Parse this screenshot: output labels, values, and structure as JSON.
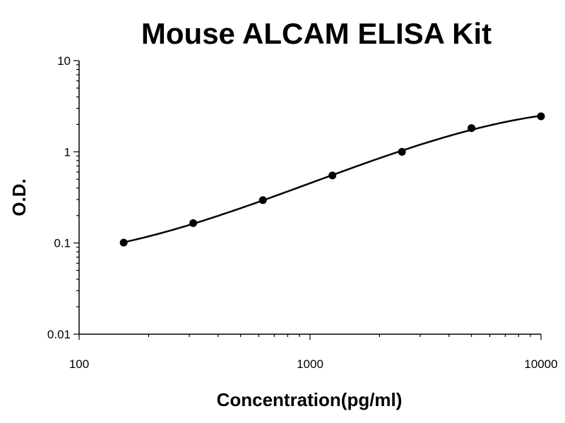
{
  "chart_data": {
    "type": "scatter",
    "title": "Mouse ALCAM ELISA Kit",
    "xlabel": "Concentration(pg/ml)",
    "ylabel": "O.D.",
    "x_scale": "log",
    "y_scale": "log",
    "xlim": [
      100,
      10000
    ],
    "ylim": [
      0.01,
      10
    ],
    "x_ticks": [
      100,
      1000,
      10000
    ],
    "x_tick_labels": [
      "100",
      "1000",
      "10000"
    ],
    "y_ticks": [
      0.01,
      0.1,
      1,
      10
    ],
    "y_tick_labels": [
      "0.01",
      "0.1",
      "1",
      "10"
    ],
    "grid": false,
    "series": [
      {
        "x": [
          156,
          312,
          625,
          1250,
          2500,
          5000,
          10000
        ],
        "y": [
          0.101,
          0.165,
          0.295,
          0.55,
          1.0,
          1.82,
          2.45
        ],
        "fit_curve": true
      }
    ]
  }
}
